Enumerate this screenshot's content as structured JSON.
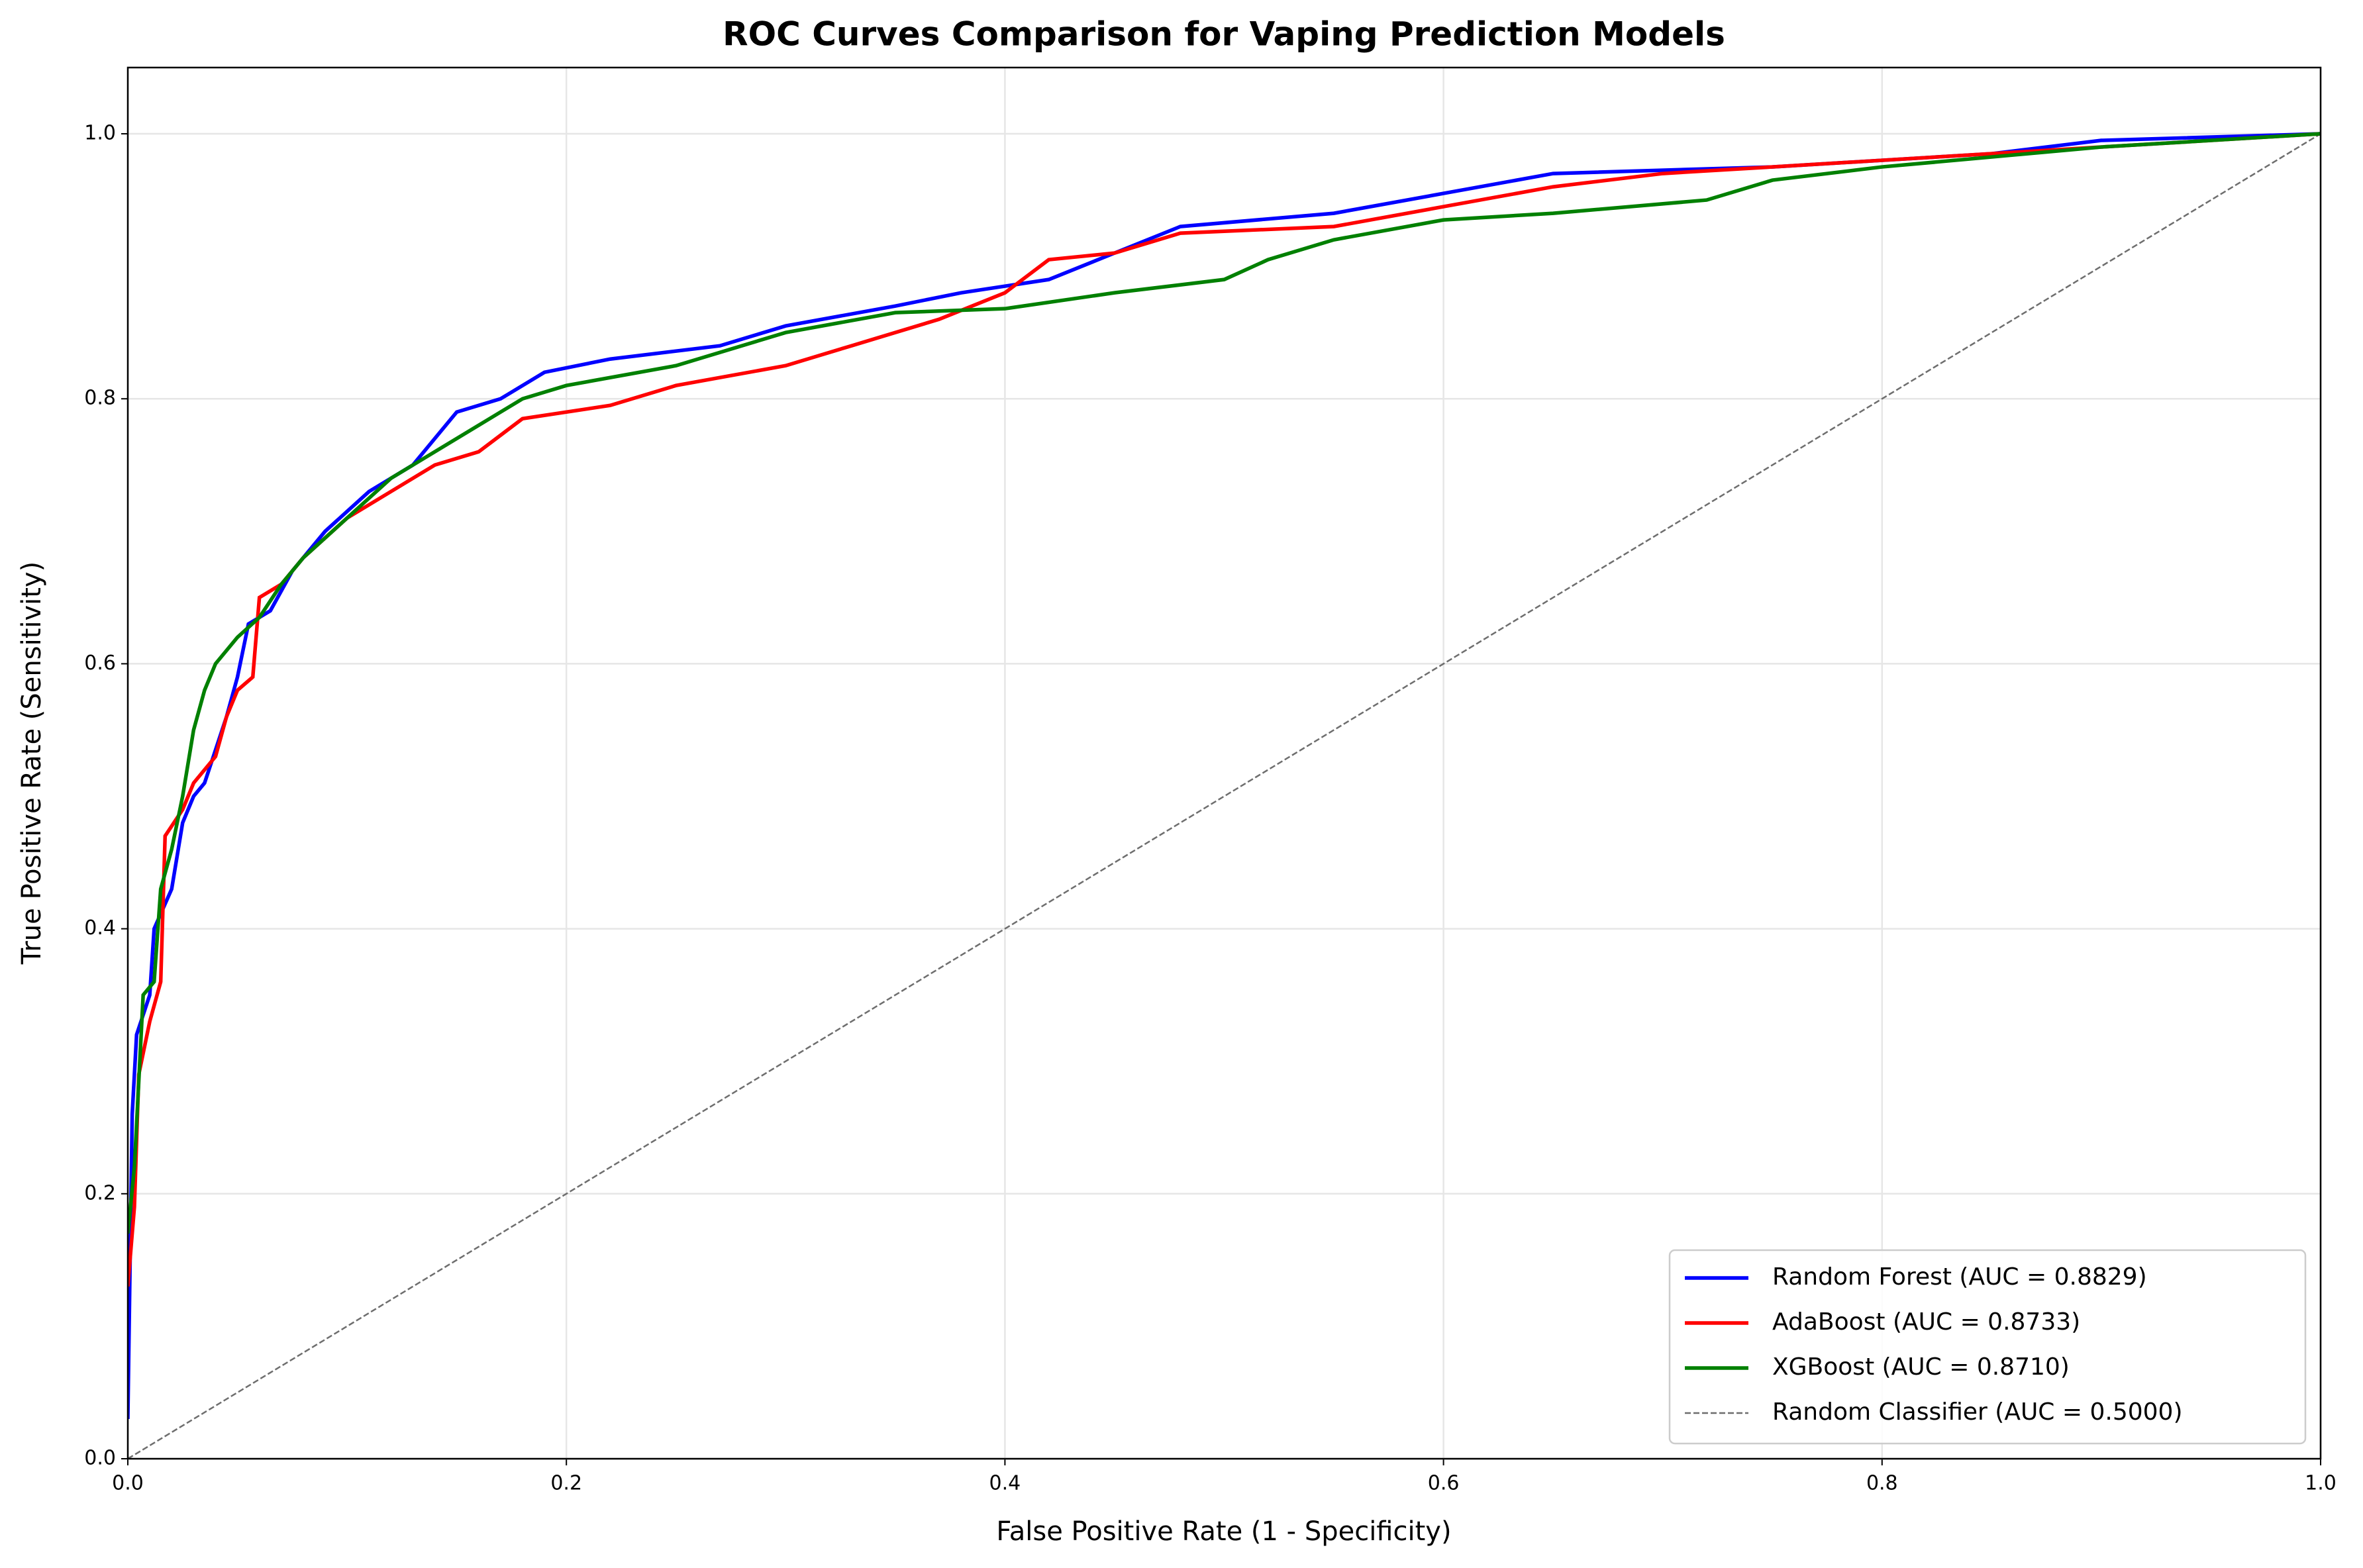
{
  "chart_data": {
    "type": "line",
    "title": "ROC Curves Comparison for Vaping Prediction Models",
    "x_label": "False Positive Rate (1 - Specificity)",
    "y_label": "True Positive Rate (Sensitivity)",
    "xlim": [
      0,
      1
    ],
    "ylim": [
      0,
      1.05
    ],
    "xticks": [
      {
        "value": 0,
        "label": "0.0"
      },
      0.2,
      0.4,
      0.6,
      0.8,
      {
        "value": 1,
        "label": "1.0"
      }
    ],
    "yticks": [
      {
        "value": 0,
        "label": "0.0"
      },
      0.2,
      0.4,
      0.6,
      0.8,
      {
        "value": 1,
        "label": "1.0"
      }
    ],
    "grid": true,
    "legend": "lower right",
    "series": [
      {
        "name": "Random Forest (AUC = 0.8829)",
        "color": "#0000ff",
        "x": [
          0,
          0.002,
          0.004,
          0.01,
          0.012,
          0.02,
          0.025,
          0.03,
          0.035,
          0.045,
          0.05,
          0.055,
          0.065,
          0.075,
          0.09,
          0.11,
          0.13,
          0.14,
          0.15,
          0.17,
          0.19,
          0.22,
          0.27,
          0.3,
          0.35,
          0.38,
          0.42,
          0.45,
          0.48,
          0.55,
          0.6,
          0.65,
          0.75,
          0.85,
          0.9,
          1
        ],
        "values": [
          0.03,
          0.26,
          0.32,
          0.35,
          0.4,
          0.43,
          0.48,
          0.5,
          0.51,
          0.56,
          0.59,
          0.63,
          0.64,
          0.67,
          0.7,
          0.73,
          0.75,
          0.77,
          0.79,
          0.8,
          0.82,
          0.83,
          0.84,
          0.855,
          0.87,
          0.88,
          0.89,
          0.91,
          0.93,
          0.94,
          0.955,
          0.97,
          0.975,
          0.985,
          0.995,
          1
        ]
      },
      {
        "name": "AdaBoost (AUC = 0.8733)",
        "color": "#ff0000",
        "x": [
          0,
          0.003,
          0.005,
          0.01,
          0.015,
          0.017,
          0.025,
          0.03,
          0.04,
          0.045,
          0.05,
          0.057,
          0.06,
          0.07,
          0.08,
          0.1,
          0.12,
          0.14,
          0.16,
          0.18,
          0.22,
          0.25,
          0.3,
          0.33,
          0.37,
          0.4,
          0.42,
          0.45,
          0.48,
          0.55,
          0.6,
          0.65,
          0.7,
          0.8,
          0.9,
          1
        ],
        "values": [
          0.13,
          0.19,
          0.29,
          0.33,
          0.36,
          0.47,
          0.49,
          0.51,
          0.53,
          0.56,
          0.58,
          0.59,
          0.65,
          0.66,
          0.68,
          0.71,
          0.73,
          0.75,
          0.76,
          0.785,
          0.795,
          0.81,
          0.825,
          0.84,
          0.86,
          0.88,
          0.905,
          0.91,
          0.925,
          0.93,
          0.945,
          0.96,
          0.97,
          0.98,
          0.99,
          1
        ]
      },
      {
        "name": "XGBoost (AUC = 0.8710)",
        "color": "#008000",
        "x": [
          0,
          0.003,
          0.007,
          0.012,
          0.015,
          0.02,
          0.025,
          0.03,
          0.035,
          0.04,
          0.05,
          0.06,
          0.07,
          0.08,
          0.1,
          0.12,
          0.14,
          0.16,
          0.18,
          0.2,
          0.25,
          0.3,
          0.35,
          0.4,
          0.45,
          0.5,
          0.52,
          0.55,
          0.6,
          0.65,
          0.72,
          0.75,
          0.8,
          0.9,
          1
        ],
        "values": [
          0.17,
          0.22,
          0.35,
          0.36,
          0.43,
          0.46,
          0.5,
          0.55,
          0.58,
          0.6,
          0.62,
          0.635,
          0.66,
          0.68,
          0.71,
          0.74,
          0.76,
          0.78,
          0.8,
          0.81,
          0.825,
          0.85,
          0.865,
          0.868,
          0.88,
          0.89,
          0.905,
          0.92,
          0.935,
          0.94,
          0.95,
          0.965,
          0.975,
          0.99,
          1
        ]
      },
      {
        "name": "Random Classifier (AUC = 0.5000)",
        "color": "#6e6e6e",
        "dashed": true,
        "x": [
          0,
          1
        ],
        "values": [
          0,
          1
        ]
      }
    ]
  }
}
